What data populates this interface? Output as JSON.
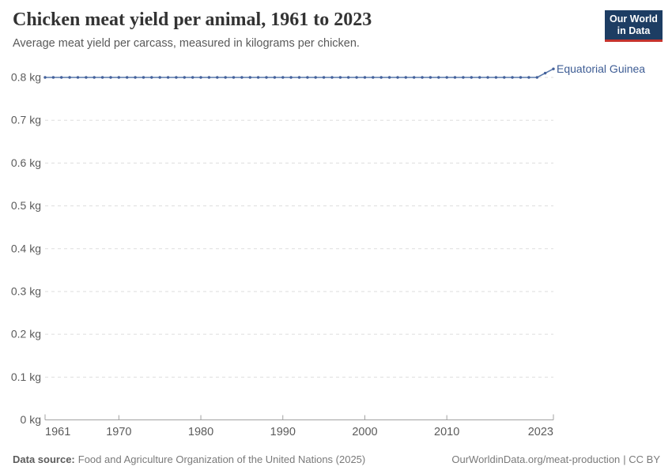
{
  "header": {
    "title": "Chicken meat yield per animal, 1961 to 2023",
    "subtitle": "Average meat yield per carcass, measured in kilograms per chicken.",
    "logo": {
      "line1": "Our World",
      "line2": "in Data",
      "bg_color": "#1d3d63",
      "accent_color": "#c5332d"
    }
  },
  "chart_data": {
    "type": "line",
    "title": "Chicken meat yield per animal, 1961 to 2023",
    "subtitle": "Average meat yield per carcass, measured in kilograms per chicken.",
    "unit": "kg",
    "xlabel": "",
    "ylabel": "",
    "xlim": [
      1961,
      2023
    ],
    "ylim": [
      0,
      0.8
    ],
    "grid": "horizontal-dashed",
    "legend_position": "right-of-line-end",
    "x_ticks": [
      1961,
      1970,
      1980,
      1990,
      2000,
      2010,
      2023
    ],
    "y_ticks": [
      {
        "value": 0,
        "label": "0 kg"
      },
      {
        "value": 0.1,
        "label": "0.1 kg"
      },
      {
        "value": 0.2,
        "label": "0.2 kg"
      },
      {
        "value": 0.3,
        "label": "0.3 kg"
      },
      {
        "value": 0.4,
        "label": "0.4 kg"
      },
      {
        "value": 0.5,
        "label": "0.5 kg"
      },
      {
        "value": 0.6,
        "label": "0.6 kg"
      },
      {
        "value": 0.7,
        "label": "0.7 kg"
      },
      {
        "value": 0.8,
        "label": "0.8 kg"
      }
    ],
    "colors": {
      "grid": "#dedede",
      "axis": "#a1a1a1",
      "tick_text": "#5b5b5b"
    },
    "series": [
      {
        "name": "Equatorial Guinea",
        "color": "#5878ab",
        "marker_color": "#44619b",
        "label_color": "#3d5c94",
        "years": [
          1961,
          1962,
          1963,
          1964,
          1965,
          1966,
          1967,
          1968,
          1969,
          1970,
          1971,
          1972,
          1973,
          1974,
          1975,
          1976,
          1977,
          1978,
          1979,
          1980,
          1981,
          1982,
          1983,
          1984,
          1985,
          1986,
          1987,
          1988,
          1989,
          1990,
          1991,
          1992,
          1993,
          1994,
          1995,
          1996,
          1997,
          1998,
          1999,
          2000,
          2001,
          2002,
          2003,
          2004,
          2005,
          2006,
          2007,
          2008,
          2009,
          2010,
          2011,
          2012,
          2013,
          2014,
          2015,
          2016,
          2017,
          2018,
          2019,
          2020,
          2021,
          2022,
          2023
        ],
        "values": [
          0.8,
          0.8,
          0.8,
          0.8,
          0.8,
          0.8,
          0.8,
          0.8,
          0.8,
          0.8,
          0.8,
          0.8,
          0.8,
          0.8,
          0.8,
          0.8,
          0.8,
          0.8,
          0.8,
          0.8,
          0.8,
          0.8,
          0.8,
          0.8,
          0.8,
          0.8,
          0.8,
          0.8,
          0.8,
          0.8,
          0.8,
          0.8,
          0.8,
          0.8,
          0.8,
          0.8,
          0.8,
          0.8,
          0.8,
          0.8,
          0.8,
          0.8,
          0.8,
          0.8,
          0.8,
          0.8,
          0.8,
          0.8,
          0.8,
          0.8,
          0.8,
          0.8,
          0.8,
          0.8,
          0.8,
          0.8,
          0.8,
          0.8,
          0.8,
          0.8,
          0.8,
          0.81,
          0.82
        ]
      }
    ]
  },
  "footer": {
    "source_label": "Data source:",
    "source_text": "Food and Agriculture Organization of the United Nations (2025)",
    "url": "OurWorldinData.org/meat-production",
    "license": "| CC BY"
  }
}
